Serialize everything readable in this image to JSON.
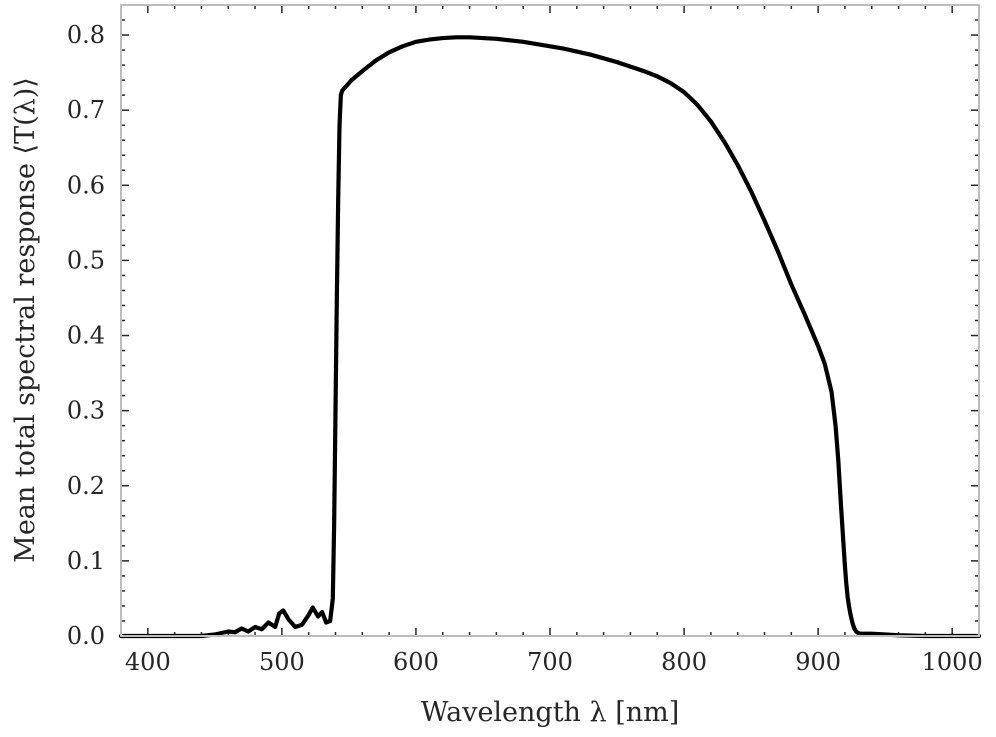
{
  "chart_data": {
    "type": "line",
    "title": "",
    "xlabel": "Wavelength λ [nm]",
    "ylabel": "Mean total spectral response ⟨T(λ)⟩",
    "xlim": [
      380,
      1020
    ],
    "ylim": [
      0.0,
      0.84
    ],
    "xticks": [
      400,
      500,
      600,
      700,
      800,
      900,
      1000
    ],
    "yticks": [
      0.0,
      0.1,
      0.2,
      0.3,
      0.4,
      0.5,
      0.6,
      0.7,
      0.8
    ],
    "xtick_labels": [
      "400",
      "500",
      "600",
      "700",
      "800",
      "900",
      "1000"
    ],
    "ytick_labels": [
      "0.0",
      "0.1",
      "0.2",
      "0.3",
      "0.4",
      "0.5",
      "0.6",
      "0.7",
      "0.8"
    ],
    "grid": false,
    "legend": "none",
    "line_color": "#000000",
    "series": [
      {
        "x": [
          380,
          400,
          420,
          440,
          450,
          455,
          460,
          465,
          470,
          475,
          480,
          485,
          490,
          495,
          498,
          501,
          505,
          510,
          515,
          520,
          523,
          527,
          530,
          533,
          536,
          538,
          539,
          540,
          541,
          542,
          543,
          544,
          545,
          548,
          552,
          560,
          570,
          580,
          590,
          600,
          610,
          620,
          630,
          640,
          650,
          660,
          670,
          680,
          690,
          700,
          710,
          720,
          730,
          740,
          750,
          760,
          770,
          780,
          790,
          800,
          810,
          820,
          830,
          840,
          850,
          860,
          870,
          880,
          890,
          900,
          905,
          910,
          913,
          915,
          917,
          919,
          920,
          921,
          922,
          923,
          924,
          925,
          926,
          927,
          928,
          929,
          930,
          931,
          932,
          934,
          940,
          960,
          980,
          1000,
          1020
        ],
        "y": [
          0.0,
          0.0,
          0.0,
          0.0,
          0.002,
          0.004,
          0.006,
          0.005,
          0.01,
          0.006,
          0.012,
          0.009,
          0.018,
          0.012,
          0.03,
          0.034,
          0.022,
          0.012,
          0.015,
          0.028,
          0.038,
          0.026,
          0.032,
          0.018,
          0.02,
          0.05,
          0.15,
          0.3,
          0.45,
          0.58,
          0.68,
          0.72,
          0.726,
          0.732,
          0.74,
          0.752,
          0.766,
          0.777,
          0.785,
          0.791,
          0.794,
          0.796,
          0.797,
          0.797,
          0.796,
          0.795,
          0.793,
          0.791,
          0.788,
          0.785,
          0.782,
          0.778,
          0.774,
          0.769,
          0.764,
          0.758,
          0.752,
          0.745,
          0.736,
          0.724,
          0.707,
          0.685,
          0.658,
          0.627,
          0.592,
          0.553,
          0.512,
          0.468,
          0.428,
          0.386,
          0.362,
          0.325,
          0.28,
          0.235,
          0.175,
          0.12,
          0.093,
          0.07,
          0.052,
          0.04,
          0.03,
          0.022,
          0.015,
          0.01,
          0.007,
          0.005,
          0.004,
          0.003,
          0.003,
          0.003,
          0.003,
          0.001,
          0.0,
          0.0,
          0.0
        ]
      }
    ]
  }
}
